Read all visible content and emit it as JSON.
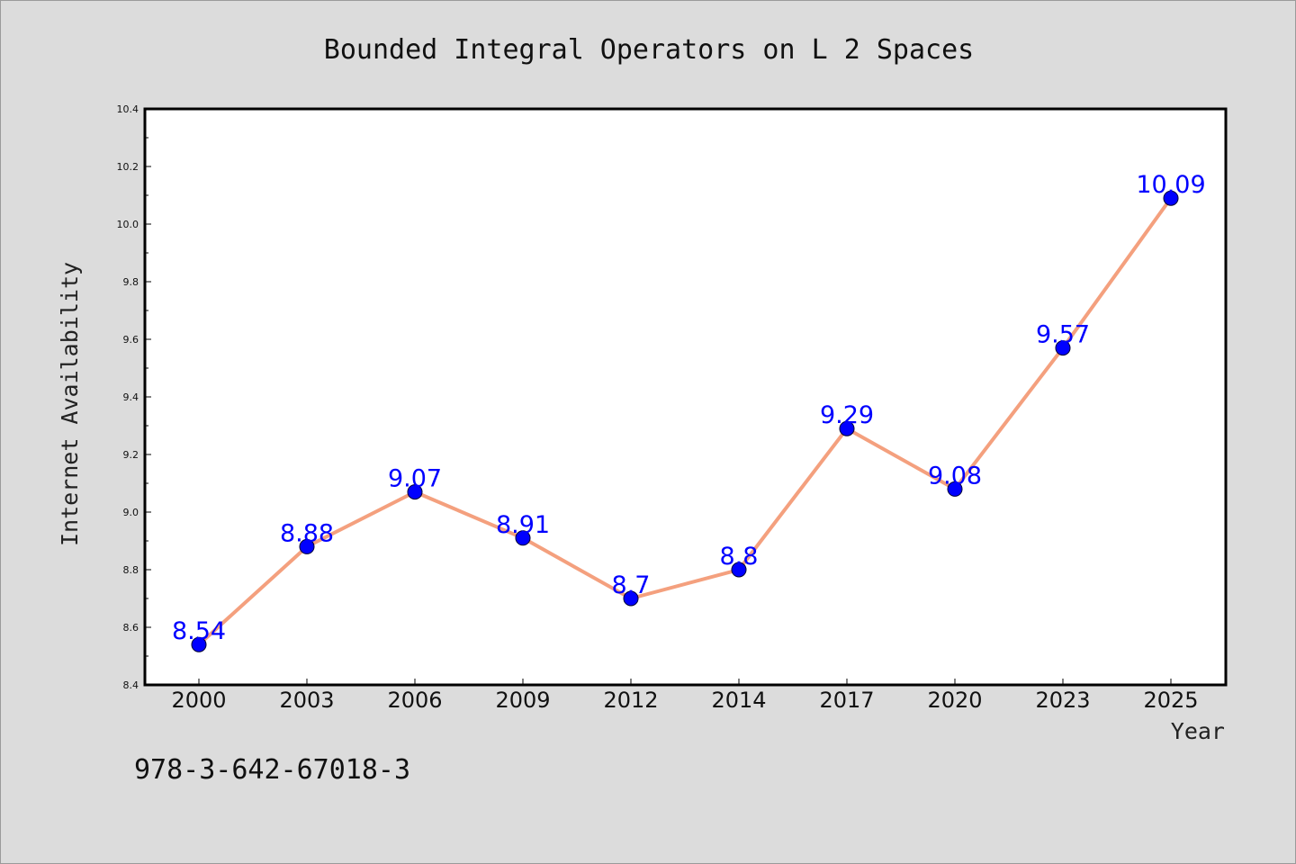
{
  "chart_data": {
    "type": "line",
    "title": "Bounded Integral Operators on L 2 Spaces",
    "xlabel": "Year",
    "ylabel": "Internet Availability",
    "categories": [
      "2000",
      "2003",
      "2006",
      "2009",
      "2012",
      "2014",
      "2017",
      "2020",
      "2023",
      "2025"
    ],
    "values": [
      8.54,
      8.88,
      9.07,
      8.91,
      8.7,
      8.8,
      9.29,
      9.08,
      9.57,
      10.09
    ],
    "data_labels": [
      "8.54",
      "8.88",
      "9.07",
      "8.91",
      "8.7",
      "8.8",
      "9.29",
      "9.08",
      "9.57",
      "10.09"
    ],
    "ylim": [
      8.4,
      10.4
    ],
    "yticks": [
      8.4,
      8.6,
      8.8,
      9.0,
      9.2,
      9.4,
      9.6,
      9.8,
      10.0,
      10.2,
      10.4
    ],
    "ytick_labels": [
      "8.4",
      "8.6",
      "8.8",
      "9.0",
      "9.2",
      "9.4",
      "9.6",
      "9.8",
      "10.0",
      "10.2",
      "10.4"
    ],
    "grid": false,
    "legend": "none",
    "line_color": "#f4a07e",
    "marker_color": "#0000ff",
    "label_color": "#0000ff",
    "plot_background": "#ffffff",
    "figure_background": "#dcdcdc"
  },
  "annotation": {
    "isbn": "978-3-642-67018-3"
  }
}
